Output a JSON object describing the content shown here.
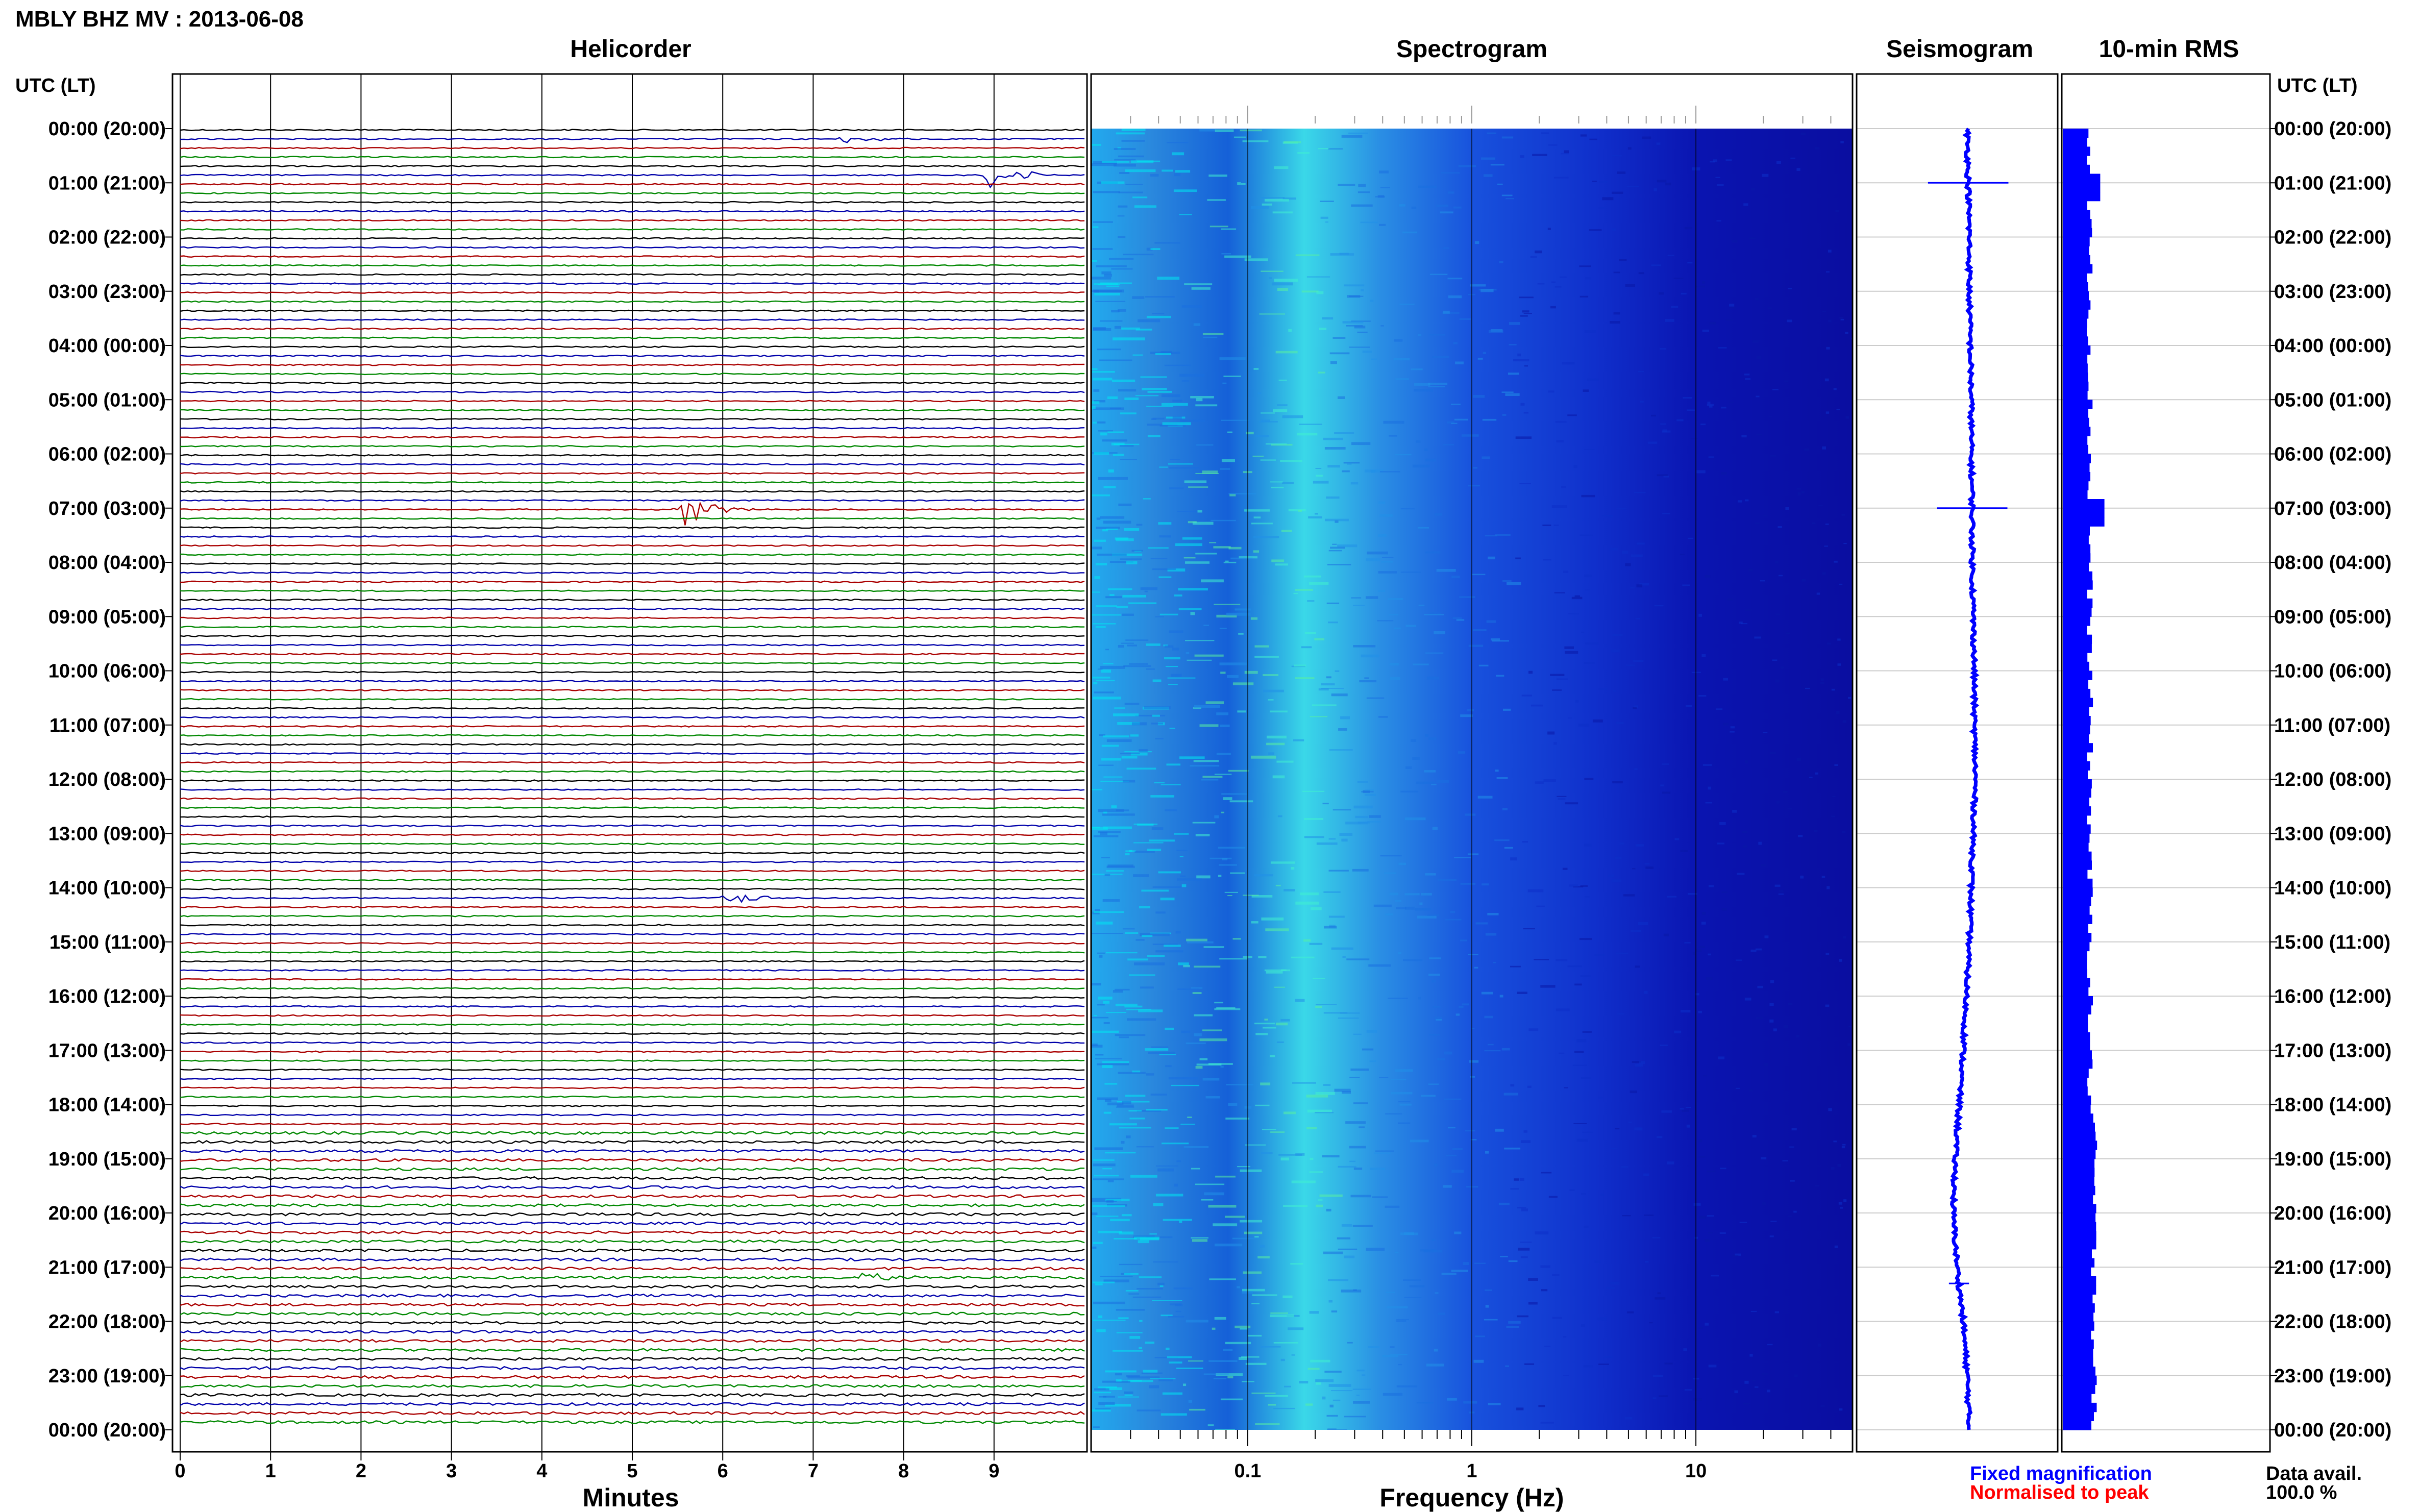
{
  "header": {
    "title": "MBLY BHZ MV : 2013-06-08",
    "utc_label_left": "UTC (LT)",
    "utc_label_right": "UTC (LT)"
  },
  "panels": {
    "helicorder": "Helicorder",
    "spectrogram": "Spectrogram",
    "seismogram": "Seismogram",
    "rms": "10-min RMS"
  },
  "footer": {
    "minutes_label": "Minutes",
    "frequency_label": "Frequency (Hz)",
    "legend_fixed": "Fixed magnification",
    "legend_normalised": "Normalised to peak",
    "data_avail_label": "Data avail.",
    "data_avail_value": "100.0 %"
  },
  "colors": {
    "trace_cycle": [
      "#000000",
      "#0000aa",
      "#aa0000",
      "#008800"
    ],
    "seismogram": "#0000ff",
    "rms": "#0000ff",
    "legend_fixed": "#0000ff",
    "legend_normalised": "#ff0000",
    "spectrogram_low": "#0000aa",
    "spectrogram_high": "#00ffff"
  },
  "chart_data": [
    {
      "type": "line",
      "name": "helicorder",
      "xlabel": "Minutes",
      "x_ticks": [
        "0",
        "1",
        "2",
        "3",
        "4",
        "5",
        "6",
        "7",
        "8",
        "9"
      ],
      "xlim": [
        0,
        10
      ],
      "traces_per_hour": 6,
      "hours": 24,
      "time_labels": [
        "00:00 (20:00)",
        "01:00 (21:00)",
        "02:00 (22:00)",
        "03:00 (23:00)",
        "04:00 (00:00)",
        "05:00 (01:00)",
        "06:00 (02:00)",
        "07:00 (03:00)",
        "08:00 (04:00)",
        "09:00 (05:00)",
        "10:00 (06:00)",
        "11:00 (07:00)",
        "12:00 (08:00)",
        "13:00 (09:00)",
        "14:00 (10:00)",
        "15:00 (11:00)",
        "16:00 (12:00)",
        "17:00 (13:00)",
        "18:00 (14:00)",
        "19:00 (15:00)",
        "20:00 (16:00)",
        "21:00 (17:00)",
        "22:00 (18:00)",
        "23:00 (19:00)",
        "00:00 (20:00)"
      ],
      "events": [
        {
          "hour": 0.17,
          "minute": 7.4,
          "amp": 0.5
        },
        {
          "hour": 0.83,
          "minute": 9.0,
          "amp": 1.6
        },
        {
          "hour": 7.0,
          "minute": 5.6,
          "amp": 1.8
        },
        {
          "hour": 14.17,
          "minute": 6.1,
          "amp": 0.7
        },
        {
          "hour": 21.17,
          "minute": 7.5,
          "amp": 0.9
        }
      ]
    },
    {
      "type": "heatmap",
      "name": "spectrogram",
      "xlabel": "Frequency (Hz)",
      "x_scale": "log",
      "xlim": [
        0.02,
        50
      ],
      "x_ticks": [
        "0.1",
        "1",
        "10"
      ],
      "colormap": [
        "#0000aa",
        "#00ffff"
      ]
    },
    {
      "type": "line",
      "name": "seismogram",
      "x_center_by_hour": [
        0.55,
        0.555,
        0.56,
        0.56,
        0.565,
        0.57,
        0.57,
        0.575,
        0.575,
        0.58,
        0.585,
        0.585,
        0.59,
        0.58,
        0.57,
        0.56,
        0.545,
        0.53,
        0.51,
        0.49,
        0.48,
        0.5,
        0.53,
        0.55,
        0.56
      ],
      "spikes": [
        {
          "hour": 1.0,
          "width": 0.4
        },
        {
          "hour": 7.0,
          "width": 0.35
        },
        {
          "hour": 21.3,
          "width": 0.1
        }
      ]
    },
    {
      "type": "bar",
      "name": "10-min RMS",
      "orientation": "horizontal",
      "base_level": 0.13,
      "peaks": [
        {
          "hour": 1.0,
          "value": 0.18
        },
        {
          "hour": 7.0,
          "value": 0.2
        },
        {
          "hour": 21.2,
          "value": 0.16
        }
      ]
    }
  ]
}
